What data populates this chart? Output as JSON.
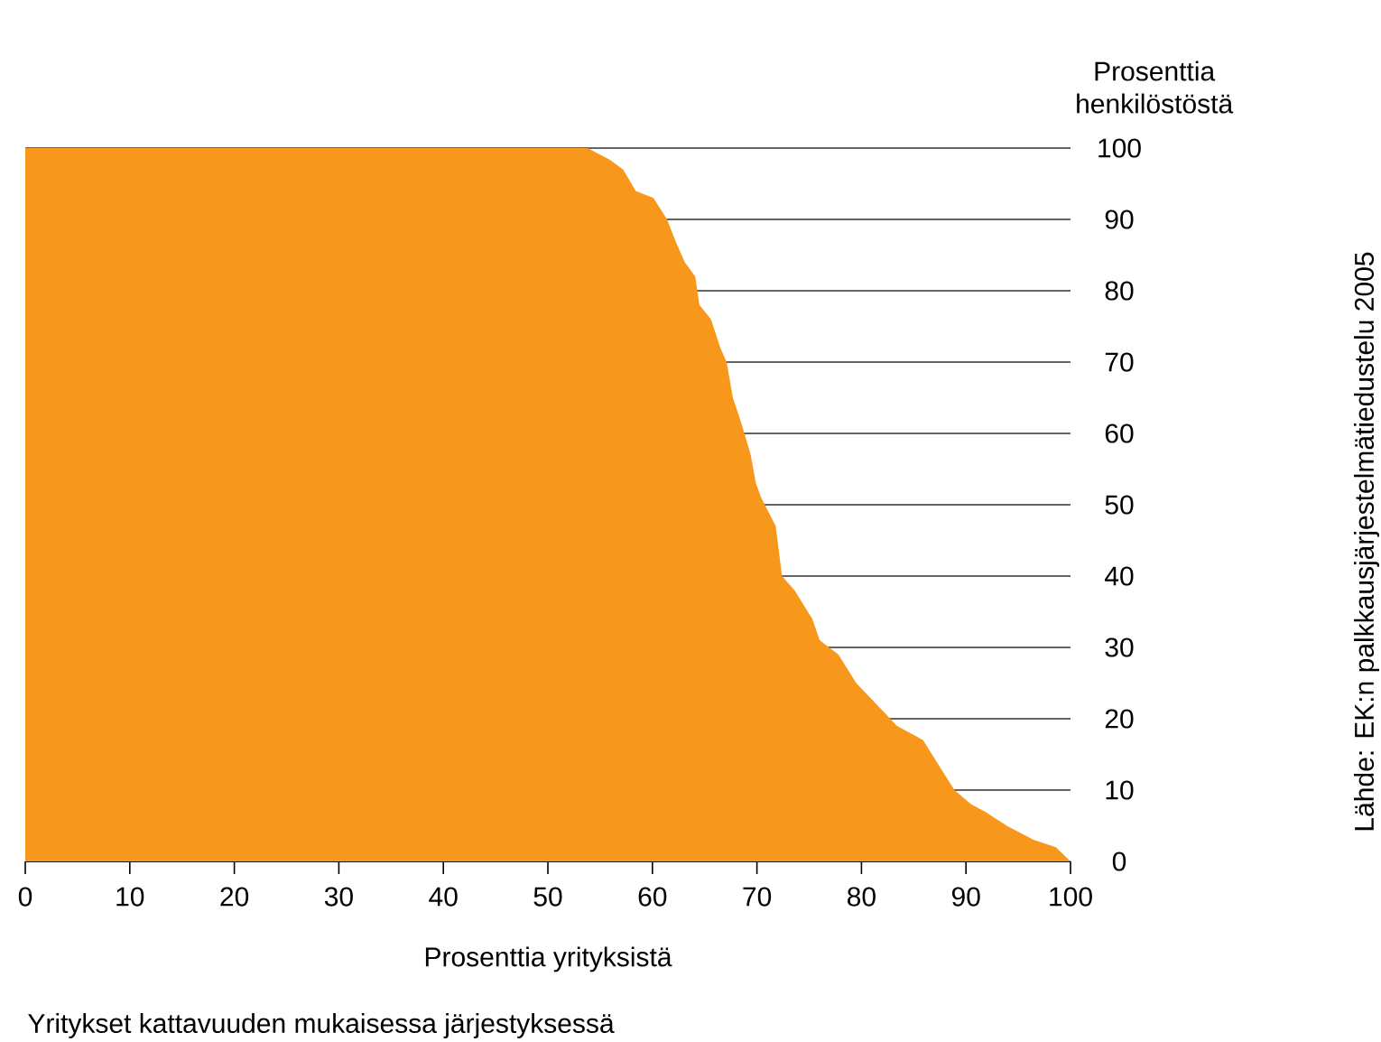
{
  "chart_data": {
    "type": "area",
    "xlabel": "Prosenttia yrityksistä",
    "ylabel": "Prosenttia henkilöstöstä",
    "annotations": [
      "Yritykset kattavuuden mukaisessa järjestyksessä",
      "Lähde: EK:n palkkausjärjestelmätiedustelu 2005"
    ],
    "x": [
      0,
      53.8,
      55.9,
      57.2,
      58.4,
      60.1,
      61.4,
      62.2,
      63.1,
      64.1,
      64.5,
      65.6,
      66.5,
      67.1,
      67.7,
      68.6,
      69.4,
      69.9,
      70.4,
      71.8,
      72.4,
      73.6,
      75.3,
      76.0,
      77.8,
      79.5,
      82.1,
      83.4,
      85.9,
      87.6,
      88.9,
      90.5,
      91.8,
      93.9,
      96.5,
      98.6,
      100
    ],
    "series": [
      {
        "color": "#f7981d",
        "values": [
          100,
          100,
          98.4,
          97,
          94,
          93,
          90,
          87,
          84,
          82,
          78,
          76,
          72,
          70,
          65,
          61,
          57,
          53,
          51,
          47,
          40,
          38,
          34,
          31,
          29,
          25,
          21,
          19,
          17,
          13,
          10,
          8,
          7,
          5,
          3,
          2,
          0
        ]
      }
    ],
    "xlim": [
      0,
      100
    ],
    "ylim": [
      0,
      100
    ],
    "xticks": [
      0,
      10,
      20,
      30,
      40,
      50,
      60,
      70,
      80,
      90,
      100
    ],
    "yticks": [
      0,
      10,
      20,
      30,
      40,
      50,
      60,
      70,
      80,
      90,
      100
    ],
    "grid": "y"
  }
}
